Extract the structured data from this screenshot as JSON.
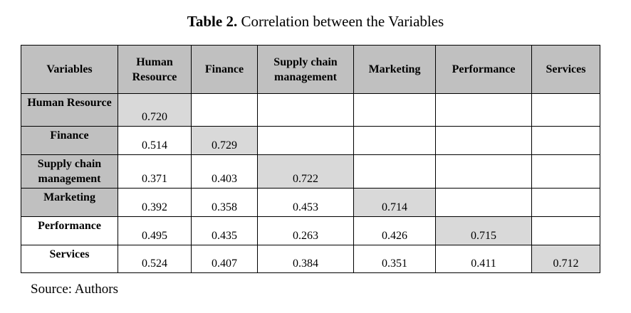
{
  "title": {
    "label": "Table 2.",
    "text": "Correlation between the Variables"
  },
  "table": {
    "corner": "Variables",
    "columns": [
      "Human Resource",
      "Finance",
      "Supply chain management",
      "Marketing",
      "Performance",
      "Services"
    ],
    "rows": [
      {
        "label": "Human Resource",
        "values": [
          "0.720",
          "",
          "",
          "",
          "",
          ""
        ]
      },
      {
        "label": "Finance",
        "values": [
          "0.514",
          "0.729",
          "",
          "",
          "",
          ""
        ]
      },
      {
        "label": "Supply chain management",
        "values": [
          "0.371",
          "0.403",
          "0.722",
          "",
          "",
          ""
        ]
      },
      {
        "label": "Marketing",
        "values": [
          "0.392",
          "0.358",
          "0.453",
          "0.714",
          "",
          ""
        ]
      },
      {
        "label": "Performance",
        "values": [
          "0.495",
          "0.435",
          "0.263",
          "0.426",
          "0.715",
          ""
        ]
      },
      {
        "label": "Services",
        "values": [
          "0.524",
          "0.407",
          "0.384",
          "0.351",
          "0.411",
          "0.712"
        ]
      }
    ]
  },
  "source": "Source: Authors",
  "colors": {
    "header": "#c0c0c0",
    "diagonal": "#d9d9d9"
  }
}
